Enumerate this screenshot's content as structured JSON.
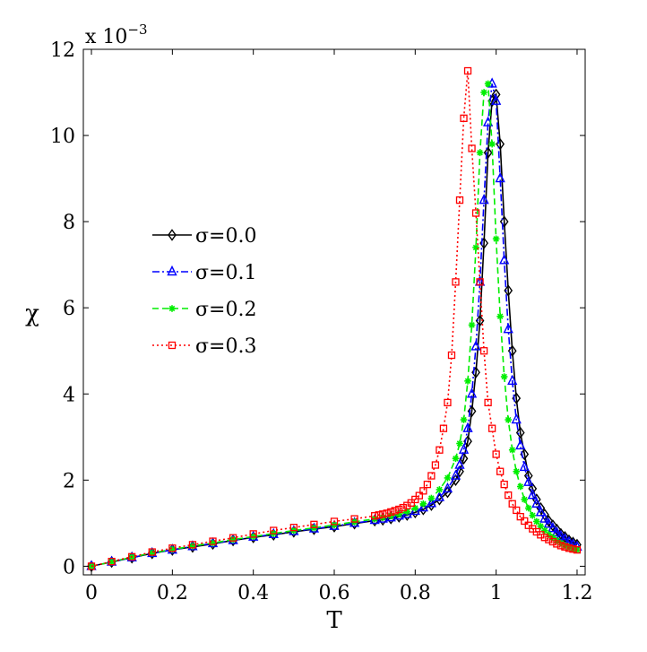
{
  "chart_data": {
    "type": "line",
    "title": "",
    "xlabel": "T",
    "ylabel": "χ",
    "y_multiplier_label": "x 10",
    "y_multiplier_exponent": "−3",
    "xlim": [
      -0.02,
      1.22
    ],
    "ylim": [
      -0.2,
      12
    ],
    "xticks": [
      0,
      0.2,
      0.4,
      0.6,
      0.8,
      1,
      1.2
    ],
    "xtick_labels": [
      "0",
      "0.2",
      "0.4",
      "0.6",
      "0.8",
      "1",
      "1.2"
    ],
    "yticks": [
      0,
      2,
      4,
      6,
      8,
      10,
      12
    ],
    "ytick_labels": [
      "0",
      "2",
      "4",
      "6",
      "8",
      "10",
      "12"
    ],
    "grid": false,
    "legend_position": "center-left",
    "series": [
      {
        "name": "σ=0.0",
        "color": "#000000",
        "line_style": "solid",
        "marker": "diamond",
        "x": [
          0,
          0.05,
          0.1,
          0.15,
          0.2,
          0.25,
          0.3,
          0.35,
          0.4,
          0.45,
          0.5,
          0.55,
          0.6,
          0.65,
          0.7,
          0.72,
          0.74,
          0.76,
          0.78,
          0.8,
          0.82,
          0.84,
          0.86,
          0.88,
          0.9,
          0.91,
          0.92,
          0.93,
          0.94,
          0.95,
          0.96,
          0.97,
          0.98,
          0.99,
          1.0,
          1.01,
          1.02,
          1.03,
          1.04,
          1.05,
          1.06,
          1.07,
          1.08,
          1.09,
          1.1,
          1.11,
          1.12,
          1.13,
          1.14,
          1.15,
          1.16,
          1.17,
          1.18,
          1.19,
          1.2
        ],
        "y": [
          0,
          0.1,
          0.2,
          0.3,
          0.38,
          0.45,
          0.52,
          0.6,
          0.67,
          0.73,
          0.8,
          0.86,
          0.92,
          0.99,
          1.06,
          1.08,
          1.11,
          1.15,
          1.19,
          1.25,
          1.32,
          1.42,
          1.55,
          1.72,
          2.0,
          2.2,
          2.5,
          2.9,
          3.6,
          4.5,
          5.7,
          7.5,
          9.6,
          10.8,
          10.95,
          9.8,
          8.0,
          6.4,
          5.0,
          3.9,
          3.1,
          2.6,
          2.1,
          1.8,
          1.55,
          1.35,
          1.2,
          1.05,
          0.95,
          0.85,
          0.75,
          0.68,
          0.6,
          0.55,
          0.5
        ]
      },
      {
        "name": "σ=0.1",
        "color": "#0000ff",
        "line_style": "dashdot",
        "marker": "triangle",
        "x": [
          0,
          0.05,
          0.1,
          0.15,
          0.2,
          0.25,
          0.3,
          0.35,
          0.4,
          0.45,
          0.5,
          0.55,
          0.6,
          0.65,
          0.7,
          0.72,
          0.74,
          0.76,
          0.78,
          0.8,
          0.82,
          0.84,
          0.86,
          0.88,
          0.9,
          0.91,
          0.92,
          0.93,
          0.94,
          0.95,
          0.96,
          0.97,
          0.98,
          0.99,
          1.0,
          1.01,
          1.02,
          1.03,
          1.04,
          1.05,
          1.06,
          1.07,
          1.08,
          1.09,
          1.1,
          1.11,
          1.12,
          1.13,
          1.14,
          1.15,
          1.16,
          1.17,
          1.18,
          1.19,
          1.2
        ],
        "y": [
          0,
          0.1,
          0.2,
          0.3,
          0.38,
          0.46,
          0.53,
          0.6,
          0.68,
          0.74,
          0.81,
          0.87,
          0.93,
          1.0,
          1.07,
          1.1,
          1.13,
          1.17,
          1.21,
          1.28,
          1.36,
          1.46,
          1.6,
          1.8,
          2.1,
          2.35,
          2.7,
          3.2,
          4.0,
          5.1,
          6.6,
          8.5,
          10.3,
          11.2,
          10.8,
          9.0,
          7.1,
          5.5,
          4.3,
          3.4,
          2.8,
          2.3,
          1.95,
          1.65,
          1.45,
          1.25,
          1.1,
          0.98,
          0.88,
          0.78,
          0.7,
          0.63,
          0.56,
          0.5,
          0.45
        ]
      },
      {
        "name": "σ=0.2",
        "color": "#00ee00",
        "line_style": "dashed",
        "marker": "asterisk",
        "x": [
          0,
          0.05,
          0.1,
          0.15,
          0.2,
          0.25,
          0.3,
          0.35,
          0.4,
          0.45,
          0.5,
          0.55,
          0.6,
          0.65,
          0.7,
          0.72,
          0.74,
          0.76,
          0.78,
          0.8,
          0.82,
          0.84,
          0.86,
          0.88,
          0.9,
          0.91,
          0.92,
          0.93,
          0.94,
          0.95,
          0.96,
          0.97,
          0.98,
          0.99,
          1.0,
          1.01,
          1.02,
          1.03,
          1.04,
          1.05,
          1.06,
          1.07,
          1.08,
          1.09,
          1.1,
          1.11,
          1.12,
          1.13,
          1.14,
          1.15,
          1.16,
          1.17,
          1.18,
          1.19,
          1.2
        ],
        "y": [
          0,
          0.1,
          0.21,
          0.31,
          0.39,
          0.47,
          0.54,
          0.62,
          0.69,
          0.76,
          0.83,
          0.89,
          0.96,
          1.03,
          1.1,
          1.13,
          1.17,
          1.21,
          1.27,
          1.35,
          1.45,
          1.58,
          1.78,
          2.05,
          2.5,
          2.85,
          3.4,
          4.3,
          5.6,
          7.4,
          9.6,
          11.0,
          11.2,
          9.8,
          7.6,
          5.8,
          4.4,
          3.4,
          2.7,
          2.2,
          1.85,
          1.55,
          1.35,
          1.18,
          1.04,
          0.93,
          0.83,
          0.74,
          0.67,
          0.6,
          0.54,
          0.49,
          0.45,
          0.41,
          0.38
        ]
      },
      {
        "name": "σ=0.3",
        "color": "#ff0000",
        "line_style": "dotted",
        "marker": "square",
        "x": [
          0,
          0.05,
          0.1,
          0.15,
          0.2,
          0.25,
          0.3,
          0.35,
          0.4,
          0.45,
          0.5,
          0.55,
          0.6,
          0.65,
          0.7,
          0.71,
          0.72,
          0.73,
          0.74,
          0.75,
          0.76,
          0.77,
          0.78,
          0.79,
          0.8,
          0.81,
          0.82,
          0.83,
          0.84,
          0.85,
          0.86,
          0.87,
          0.88,
          0.89,
          0.9,
          0.91,
          0.92,
          0.93,
          0.94,
          0.95,
          0.96,
          0.97,
          0.98,
          0.99,
          1.0,
          1.01,
          1.02,
          1.03,
          1.04,
          1.05,
          1.06,
          1.07,
          1.08,
          1.09,
          1.1,
          1.11,
          1.12,
          1.13,
          1.14,
          1.15,
          1.16,
          1.17,
          1.18,
          1.19,
          1.2
        ],
        "y": [
          0,
          0.11,
          0.22,
          0.33,
          0.42,
          0.5,
          0.58,
          0.66,
          0.75,
          0.83,
          0.9,
          0.97,
          1.04,
          1.1,
          1.17,
          1.19,
          1.21,
          1.23,
          1.26,
          1.29,
          1.32,
          1.36,
          1.41,
          1.47,
          1.55,
          1.64,
          1.75,
          1.9,
          2.1,
          2.35,
          2.7,
          3.2,
          3.8,
          4.9,
          6.6,
          8.5,
          10.4,
          11.5,
          9.7,
          8.2,
          6.6,
          5.0,
          3.8,
          3.2,
          2.6,
          2.2,
          1.9,
          1.65,
          1.45,
          1.3,
          1.15,
          1.05,
          0.95,
          0.87,
          0.8,
          0.73,
          0.67,
          0.62,
          0.57,
          0.52,
          0.48,
          0.45,
          0.42,
          0.4,
          0.38
        ]
      }
    ]
  }
}
